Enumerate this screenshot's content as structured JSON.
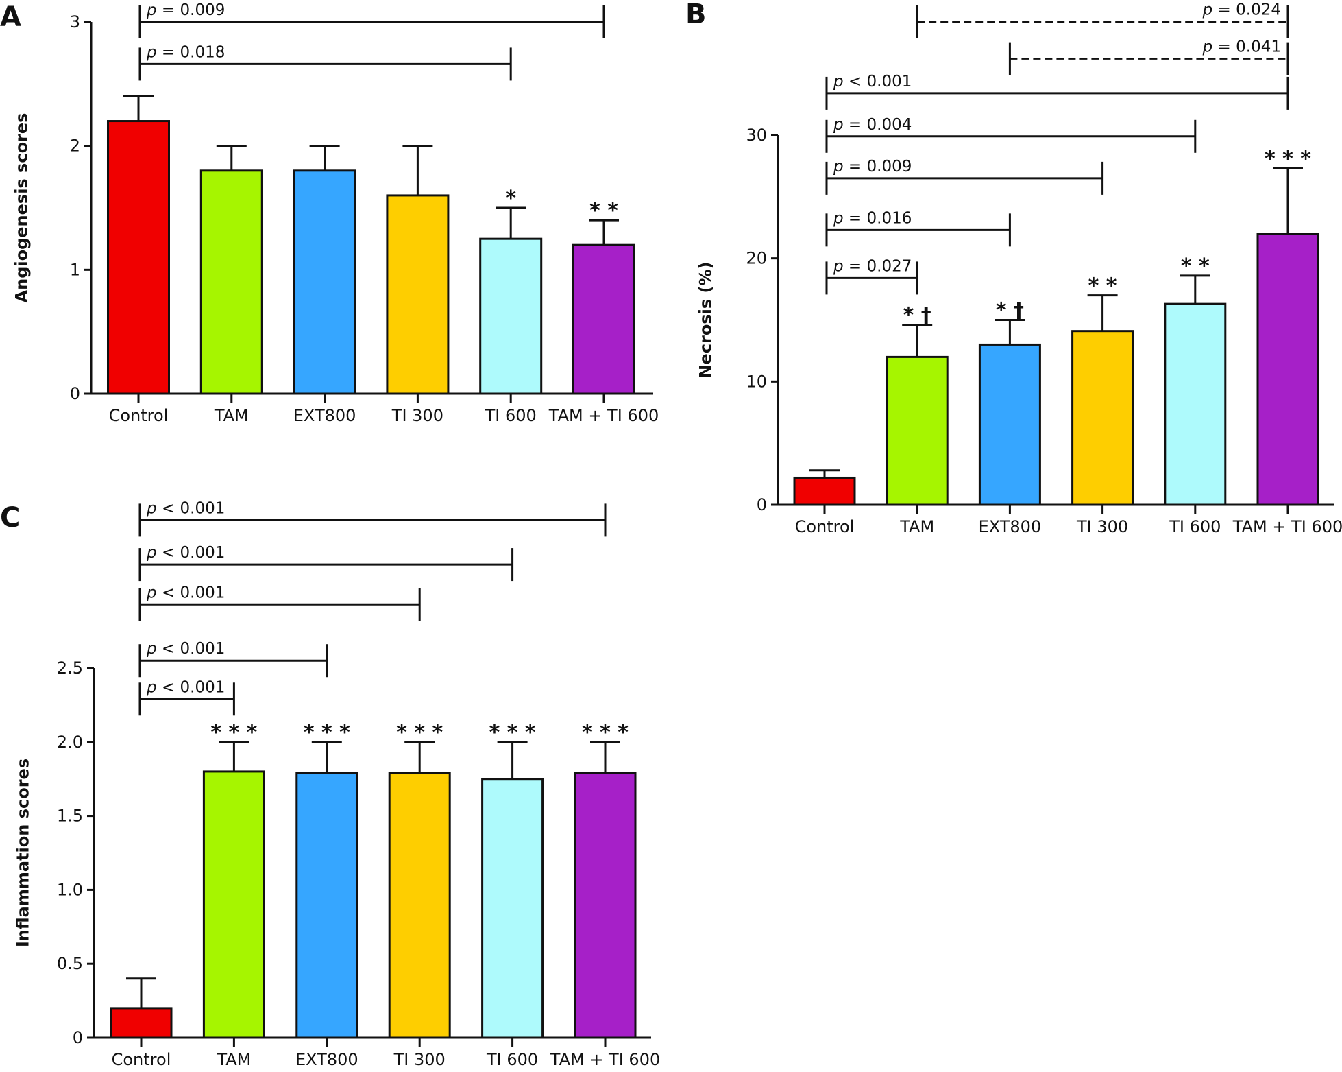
{
  "figure": {
    "colors": {
      "Control": "#F00000",
      "TAM": "#A6F500",
      "EXT800": "#36A6FF",
      "TI 300": "#FECE00",
      "TI 600": "#AEFAFC",
      "TAM + TI 600": "#A620C8"
    }
  },
  "chart_data": [
    {
      "panel": "A",
      "type": "bar",
      "title": "",
      "xlabel": "",
      "ylabel": "Angiogenesis scores",
      "ylim": [
        0,
        3
      ],
      "yticks": [
        0,
        1,
        2,
        3
      ],
      "ytick_labels": [
        "0",
        "1",
        "2",
        "3"
      ],
      "grid": false,
      "legend": "none",
      "categories": [
        "Control",
        "TAM",
        "EXT800",
        "TI 300",
        "TI 600",
        "TAM + TI 600"
      ],
      "values": [
        2.2,
        1.8,
        1.8,
        1.6,
        1.25,
        1.2
      ],
      "error_upper": [
        2.4,
        2.0,
        2.0,
        2.0,
        1.5,
        1.4
      ],
      "significance": [
        "",
        "",
        "",
        "",
        "*",
        "* *"
      ],
      "brackets": [
        {
          "from": "Control",
          "to": "TAM + TI 600",
          "label_p": "p",
          "label_rest": " = 0.009",
          "style": "solid",
          "level": 3.0
        },
        {
          "from": "Control",
          "to": "TI 600",
          "label_p": "p",
          "label_rest": " = 0.018",
          "style": "solid",
          "level": 2.66
        }
      ]
    },
    {
      "panel": "B",
      "type": "bar",
      "title": "",
      "xlabel": "",
      "ylabel": "Necrosis (%)",
      "ylim": [
        0,
        30
      ],
      "yticks": [
        0,
        10,
        20,
        30
      ],
      "ytick_labels": [
        "0",
        "10",
        "20",
        "30"
      ],
      "grid": false,
      "legend": "none",
      "categories": [
        "Control",
        "TAM",
        "EXT800",
        "TI 300",
        "TI 600",
        "TAM + TI 600"
      ],
      "values": [
        2.2,
        12.0,
        13.0,
        14.1,
        16.3,
        22.0
      ],
      "error_upper": [
        2.8,
        14.6,
        15.0,
        17.0,
        18.6,
        27.3
      ],
      "significance": [
        "",
        "* †",
        "* †",
        "* *",
        "* *",
        "* * *"
      ],
      "brackets": [
        {
          "from": "TAM",
          "to": "TAM + TI 600",
          "label_p": "p",
          "label_rest": " = 0.024",
          "style": "dashed",
          "level": 39.2,
          "label_align": "right"
        },
        {
          "from": "EXT800",
          "to": "TAM + TI 600",
          "label_p": "p",
          "label_rest": " = 0.041",
          "style": "dashed",
          "level": 36.2,
          "label_align": "right"
        },
        {
          "from": "Control",
          "to": "TAM + TI 600",
          "label_p": "p",
          "label_rest": " < 0.001",
          "style": "solid",
          "level": 33.4,
          "label_align": "left"
        },
        {
          "from": "Control",
          "to": "TI 600",
          "label_p": "p",
          "label_rest": " = 0.004",
          "style": "solid",
          "level": 29.9,
          "label_align": "left"
        },
        {
          "from": "Control",
          "to": "TI 300",
          "label_p": "p",
          "label_rest": " = 0.009",
          "style": "solid",
          "level": 26.5,
          "label_align": "left"
        },
        {
          "from": "Control",
          "to": "EXT800",
          "label_p": "p",
          "label_rest": " = 0.016",
          "style": "solid",
          "level": 22.3,
          "label_align": "left"
        },
        {
          "from": "Control",
          "to": "TAM",
          "label_p": "p",
          "label_rest": " = 0.027",
          "style": "solid",
          "level": 18.4,
          "label_align": "left"
        }
      ]
    },
    {
      "panel": "C",
      "type": "bar",
      "title": "",
      "xlabel": "",
      "ylabel": "Inflammation scores",
      "ylim": [
        0,
        2.5
      ],
      "yticks": [
        0,
        0.5,
        1.0,
        1.5,
        2.0,
        2.5
      ],
      "ytick_labels": [
        "0",
        "0.5",
        "1.0",
        "1.5",
        "2.0",
        "2.5"
      ],
      "grid": false,
      "legend": "none",
      "categories": [
        "Control",
        "TAM",
        "EXT800",
        "TI 300",
        "TI 600",
        "TAM + TI 600"
      ],
      "values": [
        0.2,
        1.8,
        1.79,
        1.79,
        1.75,
        1.79
      ],
      "error_upper": [
        0.4,
        2.0,
        2.0,
        2.0,
        2.0,
        2.0
      ],
      "significance": [
        "",
        "* * *",
        "* * *",
        "* * *",
        "* * *",
        "* * *"
      ],
      "brackets": [
        {
          "from": "Control",
          "to": "TAM + TI 600",
          "label_p": "p",
          "label_rest": " < 0.001",
          "style": "solid",
          "level": 3.5
        },
        {
          "from": "Control",
          "to": "TI 600",
          "label_p": "p",
          "label_rest": " < 0.001",
          "style": "solid",
          "level": 3.2
        },
        {
          "from": "Control",
          "to": "TI 300",
          "label_p": "p",
          "label_rest": " < 0.001",
          "style": "solid",
          "level": 2.93
        },
        {
          "from": "Control",
          "to": "EXT800",
          "label_p": "p",
          "label_rest": " < 0.001",
          "style": "solid",
          "level": 2.55
        },
        {
          "from": "Control",
          "to": "TAM",
          "label_p": "p",
          "label_rest": " < 0.001",
          "style": "solid",
          "level": 2.29
        }
      ]
    }
  ]
}
